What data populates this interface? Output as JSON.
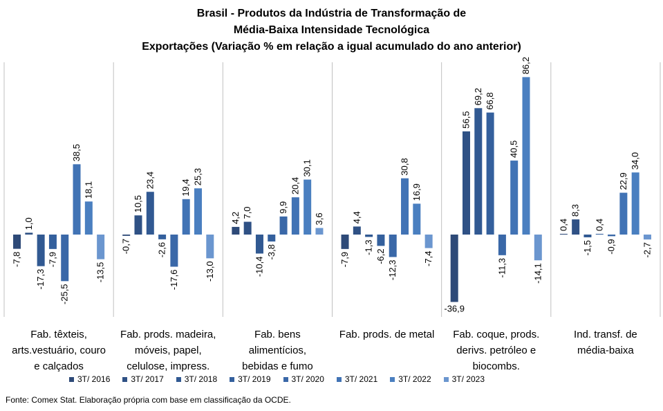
{
  "title_lines": [
    "Brasil - Produtos da Indústria de Transformação de",
    "Média-Baixa Intensidade Tecnológica",
    "Exportações (Variação % em relação a igual acumulado do ano anterior)"
  ],
  "source": "Fonte: Comex Stat. Elaboração própria com base em classificação da OCDE.",
  "chart_data": {
    "type": "bar",
    "title": "Brasil - Produtos da Indústria de Transformação de Média-Baixa Intensidade Tecnológica - Exportações (Variação % em relação a igual acumulado do ano anterior)",
    "ylim": [
      -40,
      90
    ],
    "grid": false,
    "legend_position": "bottom",
    "categories": [
      [
        "Fab. têxteis,",
        "arts.vestuário, couro",
        "e calçados"
      ],
      [
        "Fab. prods. madeira,",
        "móveis, papel,",
        "celulose, impress."
      ],
      [
        "Fab. bens",
        "alimentícios,",
        "bebidas e fumo"
      ],
      [
        "Fab. prods. de metal"
      ],
      [
        "Fab. coque, prods.",
        "derivs. petróleo e",
        "biocombs."
      ],
      [
        "Ind. transf. de",
        "média-baixa"
      ]
    ],
    "series": [
      {
        "name": "3T/ 2016",
        "color": "#2e4a78",
        "values": [
          -7.8,
          -0.7,
          4.2,
          -7.9,
          -36.9,
          0.4
        ]
      },
      {
        "name": "3T/ 2017",
        "color": "#2f5185",
        "values": [
          1.0,
          10.5,
          7.0,
          4.4,
          56.5,
          8.3
        ]
      },
      {
        "name": "3T/ 2018",
        "color": "#315992",
        "values": [
          -17.3,
          23.4,
          -10.4,
          -1.3,
          69.2,
          -1.5
        ]
      },
      {
        "name": "3T/ 2019",
        "color": "#34609d",
        "values": [
          -7.9,
          -2.6,
          -3.8,
          -6.2,
          66.8,
          0.4
        ]
      },
      {
        "name": "3T/ 2020",
        "color": "#3a68a8",
        "values": [
          -25.5,
          -17.6,
          9.9,
          -12.3,
          -11.3,
          -0.9
        ]
      },
      {
        "name": "3T/ 2021",
        "color": "#4173b5",
        "values": [
          38.5,
          19.4,
          20.4,
          30.8,
          40.5,
          22.9
        ]
      },
      {
        "name": "3T/ 2022",
        "color": "#4a7fc0",
        "values": [
          18.1,
          25.3,
          30.1,
          16.9,
          86.2,
          34.0
        ]
      },
      {
        "name": "3T/ 2023",
        "color": "#6b96cf",
        "values": [
          -13.5,
          -13.0,
          3.6,
          -7.4,
          -14.1,
          -2.7
        ]
      }
    ]
  }
}
